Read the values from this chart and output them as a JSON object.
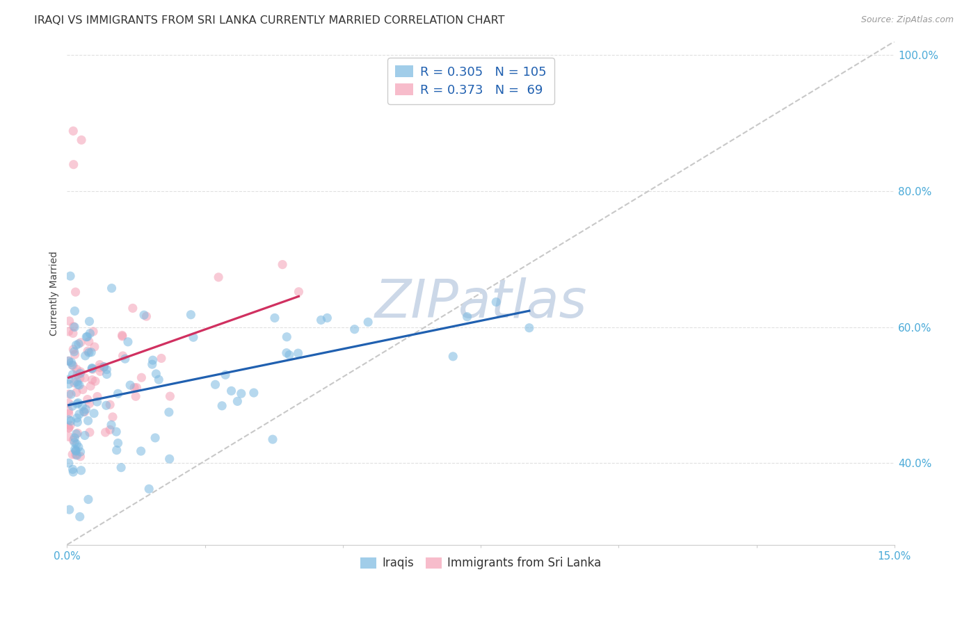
{
  "title": "IRAQI VS IMMIGRANTS FROM SRI LANKA CURRENTLY MARRIED CORRELATION CHART",
  "source": "Source: ZipAtlas.com",
  "ylabel": "Currently Married",
  "xlim": [
    0.0,
    0.15
  ],
  "ylim": [
    0.28,
    1.02
  ],
  "yticks": [
    0.4,
    0.6,
    0.8,
    1.0
  ],
  "ytick_labels": [
    "40.0%",
    "60.0%",
    "80.0%",
    "100.0%"
  ],
  "legend_bottom": [
    "Iraqis",
    "Immigrants from Sri Lanka"
  ],
  "iraqis_color": "#7ab8e0",
  "srilanka_color": "#f4a0b5",
  "trendline_iraqi_color": "#2060b0",
  "trendline_srilanka_color": "#d03060",
  "diagonal_color": "#c8c8c8",
  "watermark": "ZIPatlas",
  "watermark_color": "#ccd8e8",
  "background_color": "#ffffff",
  "iraqi_R": 0.305,
  "iraqi_N": 105,
  "srilanka_R": 0.373,
  "srilanka_N": 69,
  "title_fontsize": 11.5,
  "axis_label_fontsize": 10,
  "tick_fontsize": 11,
  "legend_fontsize": 13,
  "source_fontsize": 9,
  "dot_size": 90,
  "dot_alpha": 0.55
}
